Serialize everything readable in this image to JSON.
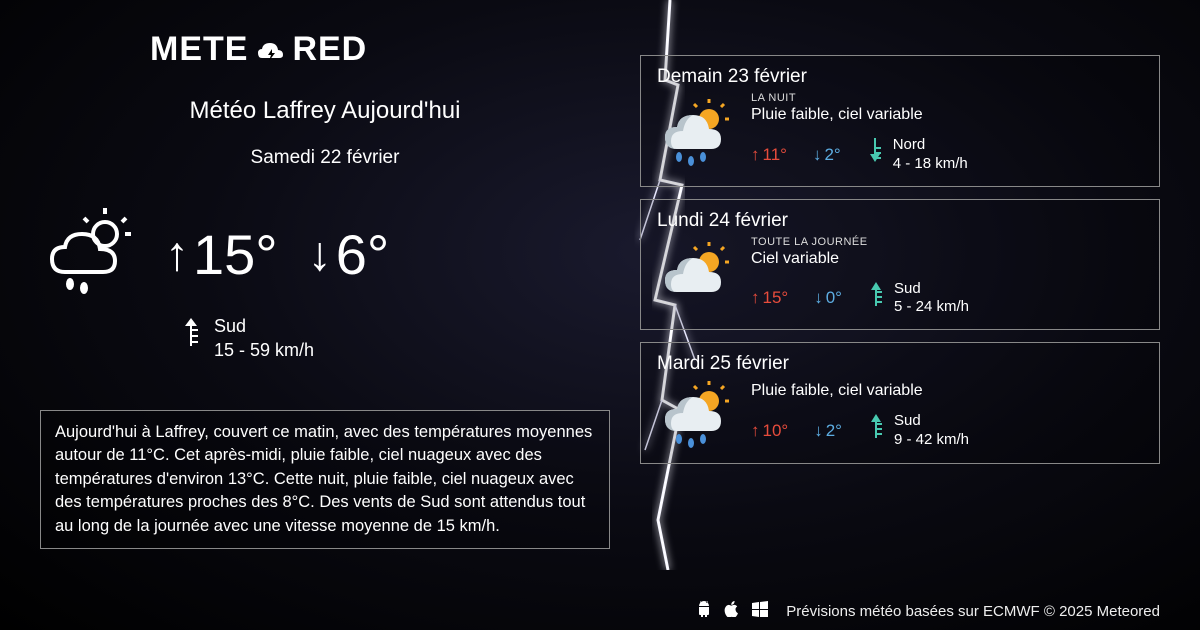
{
  "logo": {
    "text1": "METE",
    "text2": "RED"
  },
  "main": {
    "title": "Météo Laffrey Aujourd'hui",
    "date": "Samedi 22 février",
    "high": "15°",
    "low": "6°",
    "wind_dir": "Sud",
    "wind_speed": "15 - 59 km/h"
  },
  "description": "Aujourd'hui à Laffrey, couvert ce matin, avec des températures moyennes autour de 11°C. Cet après-midi, pluie faible, ciel nuageux avec des températures d'environ 13°C. Cette nuit, pluie faible, ciel nuageux avec des températures proches des 8°C. Des vents de Sud sont attendus tout au long de la journée avec une vitesse moyenne de 15 km/h.",
  "forecast": [
    {
      "title": "Demain 23 février",
      "period": "LA NUIT",
      "condition": "Pluie faible, ciel variable",
      "high": "11°",
      "low": "2°",
      "wind_dir": "Nord",
      "wind_speed": "4 - 18 km/h",
      "icon": "rain-sun"
    },
    {
      "title": "Lundi 24 février",
      "period": "TOUTE LA JOURNÉE",
      "condition": "Ciel variable",
      "high": "15°",
      "low": "0°",
      "wind_dir": "Sud",
      "wind_speed": "5 - 24 km/h",
      "icon": "cloud-sun"
    },
    {
      "title": "Mardi 25 février",
      "period": "",
      "condition": "Pluie faible, ciel variable",
      "high": "10°",
      "low": "2°",
      "wind_dir": "Sud",
      "wind_speed": "9 - 42 km/h",
      "icon": "rain-sun"
    }
  ],
  "footer": {
    "text": "Prévisions météo basées sur ECMWF © 2025 Meteored"
  },
  "colors": {
    "high": "#e74c3c",
    "low": "#5dade2",
    "wind": "#48c9b0",
    "border": "#888888",
    "sun": "#f5a623",
    "cloud": "#e8eef2",
    "cloud_shadow": "#b8c4cc",
    "rain": "#4a90d9"
  }
}
